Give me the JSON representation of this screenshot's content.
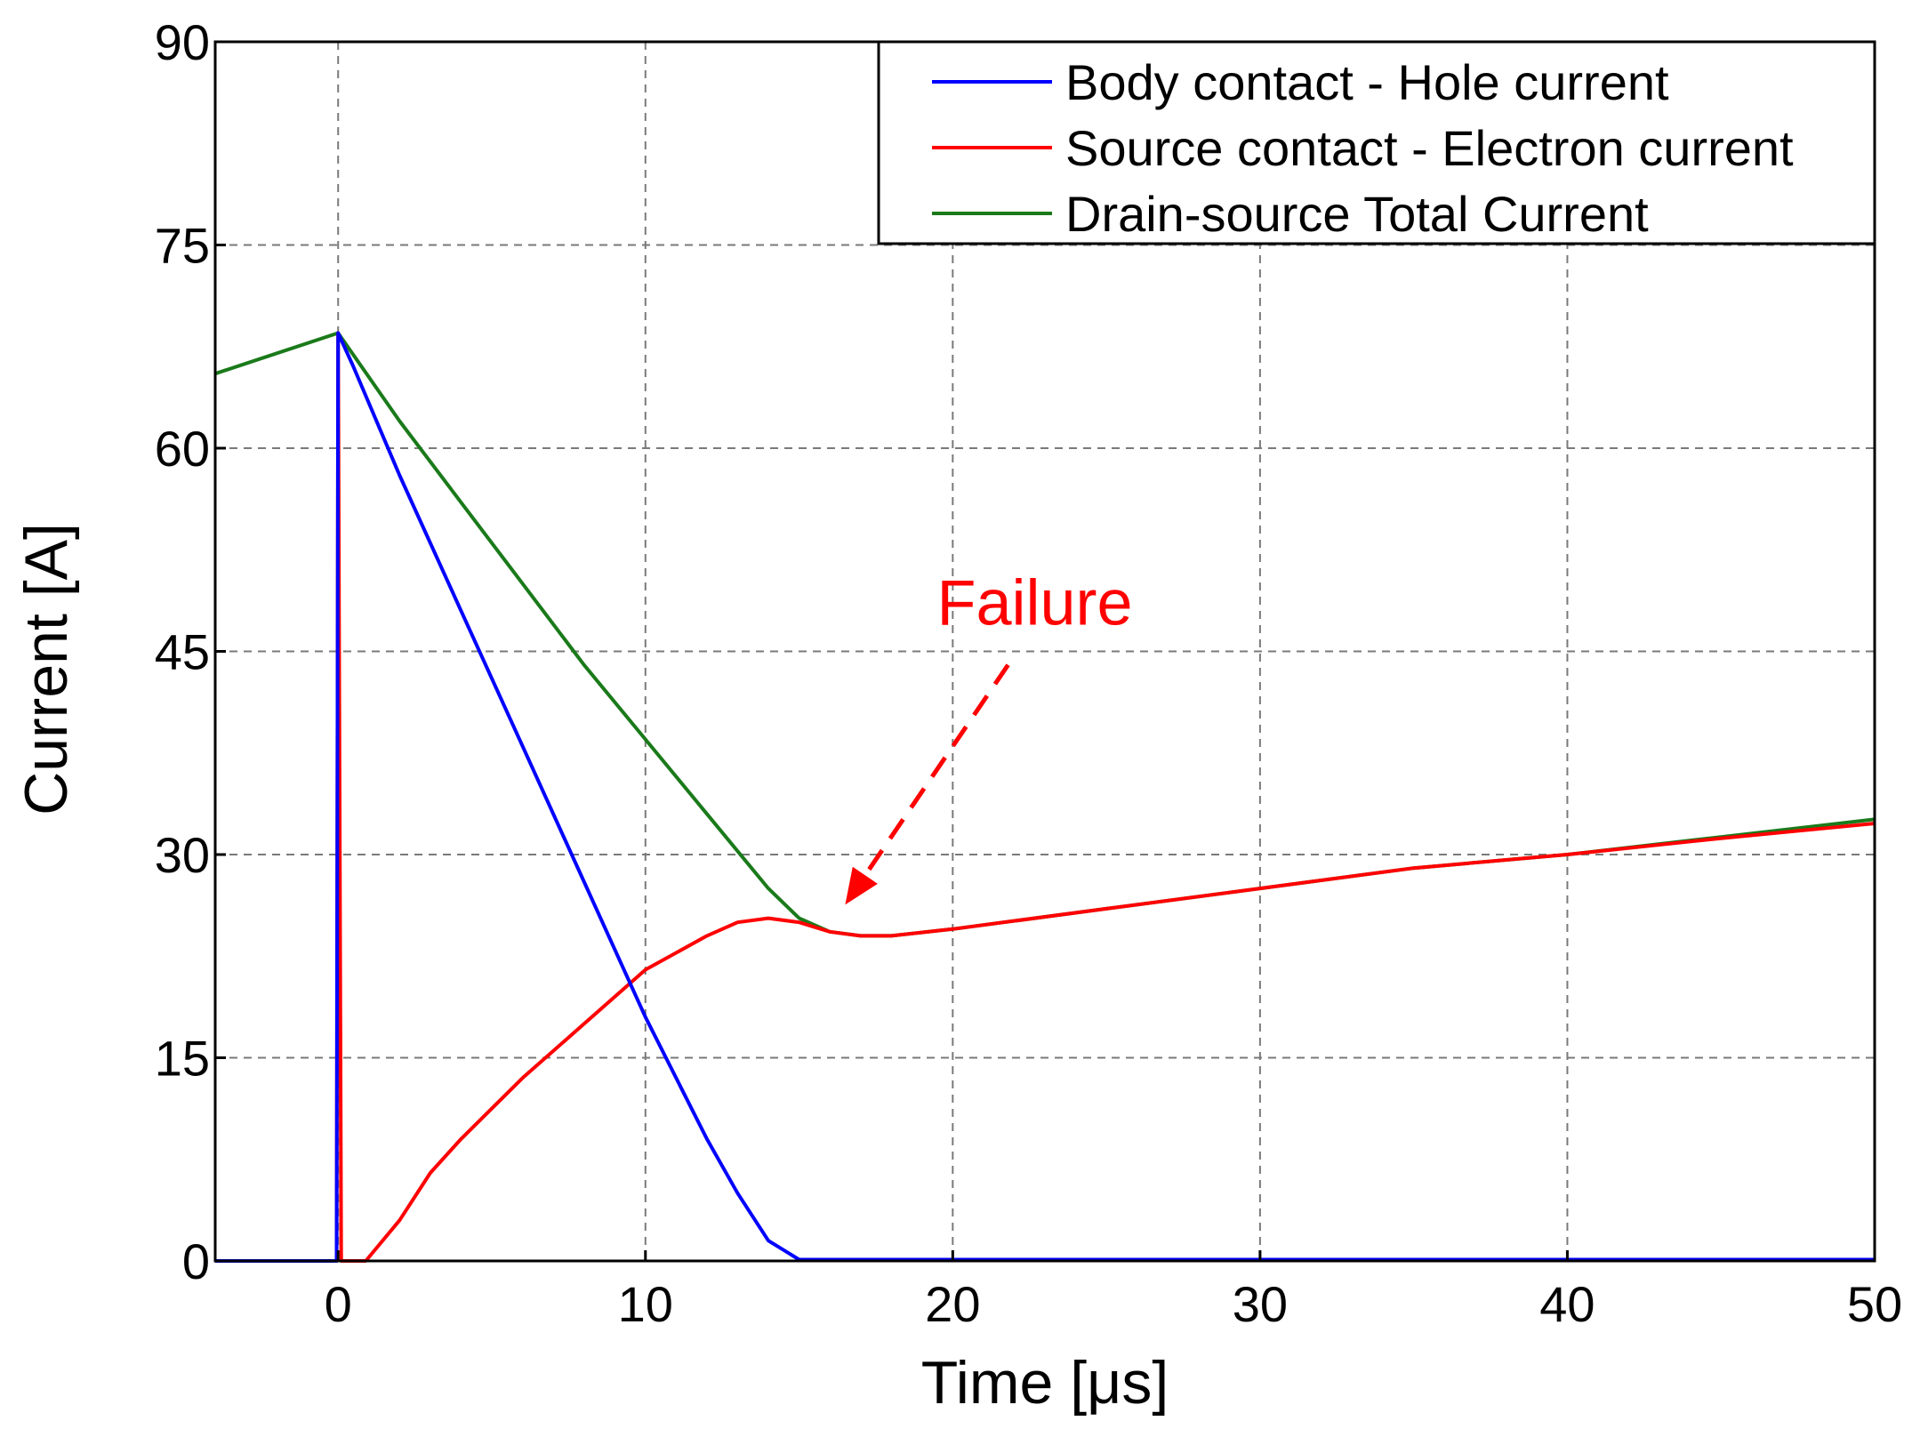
{
  "chart_data": {
    "type": "line",
    "title": "",
    "xlabel": "Time [μs]",
    "ylabel": "Current [A]",
    "xlim": [
      -4,
      50
    ],
    "ylim": [
      0,
      90
    ],
    "x_ticks": [
      0,
      10,
      20,
      30,
      40,
      50
    ],
    "x_tick_labels": [
      "0",
      "10",
      "20",
      "30",
      "40",
      "50"
    ],
    "y_ticks": [
      0,
      15,
      30,
      45,
      60,
      75,
      90
    ],
    "y_tick_labels": [
      "0",
      "15",
      "30",
      "45",
      "60",
      "75",
      "90"
    ],
    "grid": true,
    "legend_position": "top-right",
    "series": [
      {
        "name": "Body contact - Hole current",
        "color": "#0000ff",
        "points": [
          [
            -4,
            0
          ],
          [
            -0.05,
            0
          ],
          [
            0,
            68.5
          ],
          [
            0.5,
            66
          ],
          [
            2,
            58
          ],
          [
            4,
            48
          ],
          [
            6,
            38
          ],
          [
            8,
            28
          ],
          [
            10,
            18
          ],
          [
            12,
            9
          ],
          [
            13,
            5
          ],
          [
            14,
            1.5
          ],
          [
            15,
            0.1
          ],
          [
            50,
            0.1
          ]
        ]
      },
      {
        "name": "Source contact - Electron current",
        "color": "#ff0000",
        "points": [
          [
            -4,
            0
          ],
          [
            -0.05,
            0
          ],
          [
            0,
            68.5
          ],
          [
            0.1,
            0
          ],
          [
            0.9,
            0
          ],
          [
            2,
            3
          ],
          [
            3,
            6.5
          ],
          [
            4,
            9
          ],
          [
            6,
            13.5
          ],
          [
            8,
            17.5
          ],
          [
            10,
            21.5
          ],
          [
            12,
            24
          ],
          [
            13,
            25
          ],
          [
            14,
            25.3
          ],
          [
            15,
            25
          ],
          [
            16,
            24.3
          ],
          [
            17,
            24
          ],
          [
            18,
            24
          ],
          [
            20,
            24.5
          ],
          [
            25,
            26
          ],
          [
            30,
            27.5
          ],
          [
            35,
            29
          ],
          [
            40,
            30
          ],
          [
            45,
            31.2
          ],
          [
            50,
            32.3
          ]
        ]
      },
      {
        "name": "Drain-source Total Current",
        "color": "#1a7a1a",
        "points": [
          [
            -4,
            65.5
          ],
          [
            0,
            68.5
          ],
          [
            2,
            62
          ],
          [
            4,
            56
          ],
          [
            6,
            50
          ],
          [
            8,
            44
          ],
          [
            10,
            38.5
          ],
          [
            12,
            33
          ],
          [
            14,
            27.5
          ],
          [
            15,
            25.3
          ],
          [
            16,
            24.3
          ],
          [
            17,
            24
          ],
          [
            18,
            24
          ],
          [
            20,
            24.5
          ],
          [
            25,
            26
          ],
          [
            30,
            27.5
          ],
          [
            35,
            29
          ],
          [
            40,
            30
          ],
          [
            45,
            31.3
          ],
          [
            50,
            32.6
          ]
        ]
      }
    ],
    "annotations": [
      {
        "text": "Failure",
        "color": "#ff0000",
        "arrow_from": [
          21.8,
          44
        ],
        "arrow_to": [
          16.5,
          26.3
        ],
        "arrow_style": "dashed"
      }
    ]
  }
}
